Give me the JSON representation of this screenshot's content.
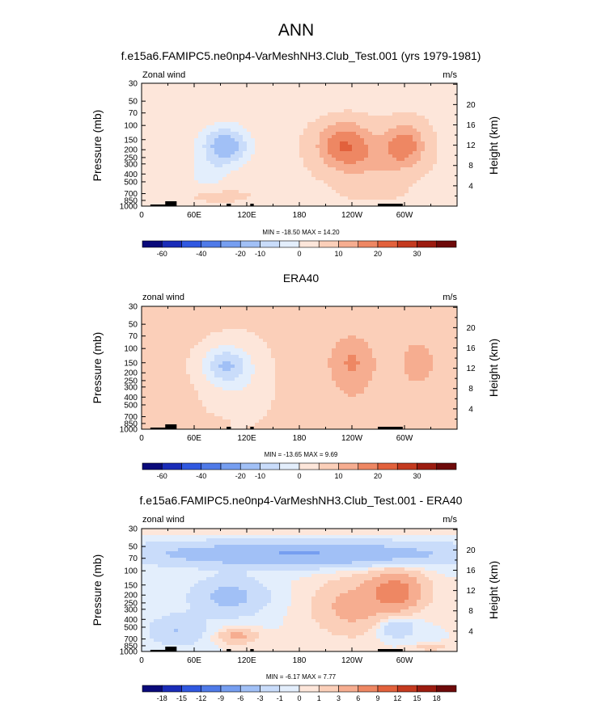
{
  "figure": {
    "main_title": "ANN",
    "colors": {
      "stops": [
        "#0a0a7a",
        "#1a2cb8",
        "#3058e0",
        "#4f7ae8",
        "#769ef0",
        "#a1c0f6",
        "#c9dcfa",
        "#e3eefc",
        "#fde6da",
        "#fbcfb9",
        "#f6ad90",
        "#ee8763",
        "#e2613c",
        "#c43a1f",
        "#9c1c10",
        "#6e0a0a"
      ],
      "land": "#000000"
    }
  },
  "chart_data": [
    {
      "type": "heatmap",
      "title": "f.e15a6.FAMIPC5.ne0np4-VarMeshNH3.Club_Test.001 (yrs 1979-1981)",
      "left_label": "Zonal wind",
      "units": "m/s",
      "ylabel": "Pressure (mb)",
      "y2label": "Height (km)",
      "x_ticks": [
        "0",
        "60E",
        "120E",
        "180",
        "120W",
        "60W"
      ],
      "x_tick_values": [
        0,
        60,
        120,
        180,
        240,
        300
      ],
      "xlim": [
        0,
        360
      ],
      "y_ticks": [
        "30",
        "50",
        "70",
        "100",
        "150",
        "200",
        "250",
        "300",
        "400",
        "500",
        "700",
        "850",
        "1000"
      ],
      "y_tick_values": [
        30,
        50,
        70,
        100,
        150,
        200,
        250,
        300,
        400,
        500,
        700,
        850,
        1000
      ],
      "ylim": [
        1000,
        30
      ],
      "height_ticks": [
        "4",
        "8",
        "12",
        "16",
        "20"
      ],
      "height_values": [
        4,
        8,
        12,
        16,
        20
      ],
      "minmax_label": "MIN = -18.50  MAX =  14.20",
      "colorbar_labels": [
        "-60",
        "-40",
        "-20",
        "-10",
        "0",
        "10",
        "20",
        "30"
      ],
      "colorbar_label_boundaries": [
        1,
        3,
        5,
        6,
        8,
        10,
        12,
        14
      ],
      "features": [
        {
          "lon": 95,
          "p": 180,
          "value": -18.5,
          "size": [
            55,
            180
          ]
        },
        {
          "lon": 75,
          "p": 400,
          "value": -6,
          "size": [
            45,
            300
          ]
        },
        {
          "lon": 230,
          "p": 170,
          "value": 14.2,
          "size": [
            60,
            200
          ]
        },
        {
          "lon": 300,
          "p": 170,
          "value": 13,
          "size": [
            45,
            180
          ]
        },
        {
          "lon": 265,
          "p": 260,
          "value": 6,
          "size": [
            90,
            300
          ]
        },
        {
          "lon": 265,
          "p": 700,
          "value": 2,
          "size": [
            70,
            300
          ]
        },
        {
          "lon": 90,
          "p": 750,
          "value": 3,
          "size": [
            65,
            250
          ]
        },
        {
          "lon": 150,
          "p": 60,
          "value": -2,
          "size": [
            200,
            40
          ]
        }
      ],
      "baseline": -1
    },
    {
      "type": "heatmap",
      "title": "ERA40",
      "left_label": "zonal wind",
      "units": "m/s",
      "ylabel": "Pressure (mb)",
      "y2label": "Height (km)",
      "x_ticks": [
        "0",
        "60E",
        "120E",
        "180",
        "120W",
        "60W"
      ],
      "x_tick_values": [
        0,
        60,
        120,
        180,
        240,
        300
      ],
      "xlim": [
        0,
        360
      ],
      "y_ticks": [
        "30",
        "50",
        "70",
        "100",
        "150",
        "200",
        "250",
        "300",
        "400",
        "500",
        "700",
        "850",
        "1000"
      ],
      "y_tick_values": [
        30,
        50,
        70,
        100,
        150,
        200,
        250,
        300,
        400,
        500,
        700,
        850,
        1000
      ],
      "ylim": [
        1000,
        30
      ],
      "height_ticks": [
        "4",
        "8",
        "12",
        "16",
        "20"
      ],
      "height_values": [
        4,
        8,
        12,
        16,
        20
      ],
      "minmax_label": "MIN = -13.65  MAX =  9.69",
      "colorbar_labels": [
        "-60",
        "-40",
        "-20",
        "-10",
        "0",
        "10",
        "20",
        "30"
      ],
      "colorbar_label_boundaries": [
        1,
        3,
        5,
        6,
        8,
        10,
        12,
        14
      ],
      "features": [
        {
          "lon": 95,
          "p": 160,
          "value": -13.65,
          "size": [
            50,
            150
          ]
        },
        {
          "lon": 110,
          "p": 250,
          "value": -5,
          "size": [
            70,
            400
          ]
        },
        {
          "lon": 240,
          "p": 150,
          "value": 9.69,
          "size": [
            55,
            200
          ]
        },
        {
          "lon": 315,
          "p": 150,
          "value": 7,
          "size": [
            45,
            180
          ]
        },
        {
          "lon": 70,
          "p": 800,
          "value": 3,
          "size": [
            50,
            200
          ]
        },
        {
          "lon": 250,
          "p": 500,
          "value": 2,
          "size": [
            100,
            500
          ]
        }
      ],
      "baseline": 1
    },
    {
      "type": "heatmap",
      "title": "f.e15a6.FAMIPC5.ne0np4-VarMeshNH3.Club_Test.001 - ERA40",
      "left_label": "zonal wind",
      "units": "m/s",
      "ylabel": "Pressure (mb)",
      "y2label": "Height (km)",
      "x_ticks": [
        "0",
        "60E",
        "120E",
        "180",
        "120W",
        "60W"
      ],
      "x_tick_values": [
        0,
        60,
        120,
        180,
        240,
        300
      ],
      "xlim": [
        0,
        360
      ],
      "y_ticks": [
        "30",
        "50",
        "70",
        "100",
        "150",
        "200",
        "250",
        "300",
        "400",
        "500",
        "700",
        "850",
        "1000"
      ],
      "y_tick_values": [
        30,
        50,
        70,
        100,
        150,
        200,
        250,
        300,
        400,
        500,
        700,
        850,
        1000
      ],
      "ylim": [
        1000,
        30
      ],
      "height_ticks": [
        "4",
        "8",
        "12",
        "16",
        "20"
      ],
      "height_values": [
        4,
        8,
        12,
        16,
        20
      ],
      "minmax_label": "MIN = -6.17  MAX =  7.77",
      "colorbar_labels": [
        "-18",
        "-15",
        "-12",
        "-9",
        "-6",
        "-3",
        "-1",
        "0",
        "1",
        "3",
        "6",
        "9",
        "12",
        "15",
        "18"
      ],
      "colorbar_label_boundaries": [
        1,
        2,
        3,
        4,
        5,
        6,
        7,
        8,
        9,
        10,
        11,
        12,
        13,
        14,
        15
      ],
      "features": [
        {
          "lon": 180,
          "p": 62,
          "value": -6.17,
          "size": [
            360,
            40
          ]
        },
        {
          "lon": 100,
          "p": 210,
          "value": -4,
          "size": [
            80,
            200
          ]
        },
        {
          "lon": 290,
          "p": 180,
          "value": 7.77,
          "size": [
            60,
            180
          ]
        },
        {
          "lon": 240,
          "p": 280,
          "value": 4,
          "size": [
            80,
            350
          ]
        },
        {
          "lon": 110,
          "p": 650,
          "value": 4,
          "size": [
            40,
            250
          ]
        },
        {
          "lon": 40,
          "p": 550,
          "value": -3,
          "size": [
            60,
            450
          ]
        },
        {
          "lon": 290,
          "p": 500,
          "value": -3,
          "size": [
            45,
            300
          ]
        },
        {
          "lon": 180,
          "p": 33,
          "value": 1,
          "size": [
            360,
            8
          ]
        },
        {
          "lon": 330,
          "p": 900,
          "value": 2,
          "size": [
            40,
            150
          ]
        }
      ],
      "baseline": 0
    }
  ]
}
